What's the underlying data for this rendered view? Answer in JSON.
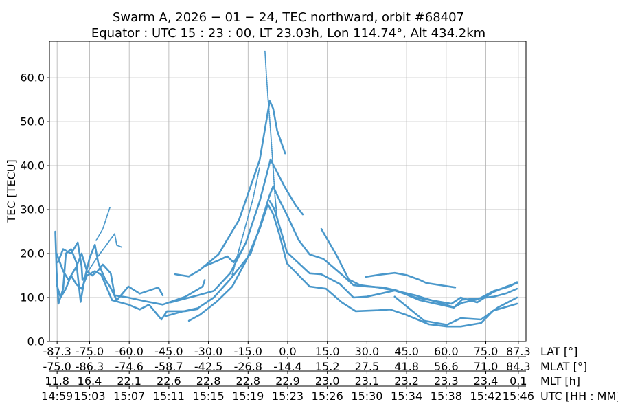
{
  "chart_data": {
    "type": "scatter",
    "title_lines": [
      "Swarm A,  2026 − 01 − 24,  TEC northward,  orbit #68407",
      "Equator :  UTC 15 : 23 : 00,  LT 23.03h,  Lon 114.74°,  Alt 434.2km"
    ],
    "ylabel": "TEC [TECU]",
    "xlim": [
      -90.2,
      90.2
    ],
    "ylim": [
      0,
      68.3
    ],
    "yticks": [
      0,
      10,
      20,
      30,
      40,
      50,
      60
    ],
    "ytick_labels": [
      "0.0",
      "10.0",
      "20.0",
      "30.0",
      "40.0",
      "50.0",
      "60.0"
    ],
    "grid": true,
    "color": "#4a98cb",
    "xticks": [
      -87.3,
      -75,
      -60,
      -45,
      -30,
      -15,
      0,
      15,
      30,
      45,
      60,
      75,
      87.3
    ],
    "axis_rows": [
      {
        "label": "LAT [°]",
        "values": [
          "-87.3",
          "-75.0",
          "-60.0",
          "-45.0",
          "-30.0",
          "-15.0",
          "0.0",
          "15.0",
          "30.0",
          "45.0",
          "60.0",
          "75.0",
          "87.3"
        ]
      },
      {
        "label": "MLAT [°]",
        "values": [
          "-75.0",
          "-86.3",
          "-74.6",
          "-58.7",
          "-42.5",
          "-26.8",
          "-14.4",
          "15.2",
          "27.5",
          "41.8",
          "56.6",
          "71.0",
          "84.3"
        ]
      },
      {
        "label": "MLT [h]",
        "values": [
          "11.8",
          "16.4",
          "22.1",
          "22.6",
          "22.8",
          "22.8",
          "22.9",
          "23.0",
          "23.1",
          "23.2",
          "23.3",
          "23.4",
          "0.1"
        ]
      },
      {
        "label": "UTC [HH : MM]",
        "values": [
          "14:59",
          "15:03",
          "15:07",
          "15:11",
          "15:15",
          "15:19",
          "15:23",
          "15:26",
          "15:30",
          "15:34",
          "15:38",
          "15:42",
          "15:46"
        ]
      }
    ],
    "series": [
      {
        "style": "dotted",
        "points": [
          [
            -8.6,
            66
          ],
          [
            -8,
            60
          ],
          [
            -7.4,
            55
          ],
          [
            -6.5,
            48
          ],
          [
            -5.6,
            40
          ],
          [
            -4.8,
            33
          ],
          [
            -4,
            28
          ]
        ]
      },
      {
        "style": "solid",
        "points": [
          [
            -42.6,
            15.3
          ],
          [
            -37.4,
            14.8
          ],
          [
            -33.2,
            16.3
          ],
          [
            -26.2,
            19.8
          ],
          [
            -18.4,
            27.7
          ],
          [
            -10.6,
            41.3
          ],
          [
            -6.8,
            54.7
          ],
          [
            -5.5,
            53
          ],
          [
            -4,
            48
          ],
          [
            -1,
            42.8
          ]
        ]
      },
      {
        "style": "dotted",
        "points": [
          [
            -21,
            15.2
          ],
          [
            -17.1,
            23.8
          ],
          [
            -13.2,
            32.3
          ],
          [
            -10.6,
            39.7
          ]
        ]
      },
      {
        "style": "solid",
        "points": [
          [
            -44.4,
            8.9
          ],
          [
            -34,
            10.5
          ],
          [
            -28,
            11.5
          ],
          [
            -21.8,
            15.5
          ],
          [
            -15.8,
            22.5
          ],
          [
            -10.6,
            31.9
          ],
          [
            -6.5,
            41.4
          ],
          [
            -4,
            38.5
          ],
          [
            -1,
            35
          ],
          [
            3,
            31
          ],
          [
            5.7,
            28.9
          ]
        ]
      },
      {
        "style": "solid",
        "points": [
          [
            -46,
            5.8
          ],
          [
            -40,
            6.8
          ],
          [
            -34,
            7.6
          ],
          [
            -28,
            10
          ],
          [
            -22,
            14
          ],
          [
            -18,
            17
          ],
          [
            -14,
            20
          ],
          [
            -10.6,
            26
          ],
          [
            -7,
            33
          ],
          [
            -5.5,
            35.3
          ],
          [
            -3,
            32
          ],
          [
            -0.3,
            28.8
          ],
          [
            4.2,
            23
          ],
          [
            8.3,
            19.8
          ],
          [
            13.5,
            18.8
          ],
          [
            20.5,
            15.2
          ],
          [
            24.9,
            12.8
          ],
          [
            30,
            12.5
          ],
          [
            36,
            12.3
          ],
          [
            41.3,
            11.6
          ],
          [
            50,
            9.4
          ],
          [
            62.9,
            7.7
          ],
          [
            66,
            9.5
          ],
          [
            72,
            9.8
          ],
          [
            78,
            10.2
          ],
          [
            83,
            11
          ],
          [
            86.8,
            12
          ]
        ]
      },
      {
        "style": "solid",
        "points": [
          [
            -37.4,
            4.7
          ],
          [
            -33.2,
            6.1
          ],
          [
            -27,
            9
          ],
          [
            -21,
            12.5
          ],
          [
            -15.8,
            18.3
          ],
          [
            -10.6,
            25.6
          ],
          [
            -7.5,
            31.2
          ],
          [
            -5.5,
            29
          ],
          [
            -3,
            24
          ],
          [
            -0.3,
            17.8
          ],
          [
            8.3,
            12.5
          ],
          [
            14.5,
            12
          ],
          [
            20.5,
            8.9
          ],
          [
            25.7,
            6.9
          ],
          [
            34.3,
            7.1
          ],
          [
            38.7,
            7.3
          ],
          [
            44.7,
            6.1
          ],
          [
            53.5,
            3.9
          ],
          [
            60.3,
            3.4
          ],
          [
            65.5,
            3.4
          ],
          [
            73.2,
            4.2
          ],
          [
            77.7,
            7.0
          ],
          [
            86.8,
            8.6
          ]
        ]
      },
      {
        "style": "solid",
        "points": [
          [
            -6.8,
            32
          ],
          [
            -5,
            30
          ],
          [
            -2,
            24
          ],
          [
            -0.3,
            20.3
          ],
          [
            8.3,
            15.5
          ],
          [
            12.7,
            15.3
          ],
          [
            19.7,
            13.1
          ],
          [
            24.9,
            10
          ],
          [
            30,
            10.2
          ],
          [
            40.5,
            11.6
          ],
          [
            48.3,
            10.5
          ],
          [
            62.9,
            7.8
          ],
          [
            66,
            8.8
          ],
          [
            72,
            9.6
          ],
          [
            78,
            11.5
          ],
          [
            84,
            12.5
          ],
          [
            86.8,
            13.5
          ]
        ]
      },
      {
        "style": "solid",
        "points": [
          [
            12.7,
            25.6
          ],
          [
            18.7,
            19.4
          ],
          [
            23.1,
            14.1
          ],
          [
            27.5,
            12.8
          ],
          [
            34.3,
            12.3
          ],
          [
            40.5,
            11.6
          ],
          [
            48.3,
            10
          ],
          [
            62,
            8.6
          ],
          [
            65.5,
            10
          ],
          [
            71.7,
            8.9
          ],
          [
            77.7,
            11.2
          ],
          [
            82.9,
            12.5
          ],
          [
            86.8,
            13.3
          ]
        ]
      },
      {
        "style": "solid",
        "points": [
          [
            40.5,
            10.2
          ],
          [
            51.7,
            4.7
          ],
          [
            60.3,
            3.8
          ],
          [
            65.5,
            5.3
          ],
          [
            73.2,
            5
          ],
          [
            79.5,
            7.7
          ],
          [
            86.8,
            10
          ]
        ]
      },
      {
        "style": "solid",
        "points": [
          [
            29.6,
            14.7
          ],
          [
            35,
            15.2
          ],
          [
            40.5,
            15.6
          ],
          [
            45,
            15.1
          ],
          [
            50,
            14
          ],
          [
            52.5,
            13.3
          ],
          [
            58,
            12.8
          ],
          [
            63.4,
            12.3
          ]
        ]
      },
      {
        "style": "solid",
        "points": [
          [
            -32,
            17
          ],
          [
            -26,
            18.5
          ],
          [
            -22.9,
            19.4
          ],
          [
            -20.5,
            18
          ],
          [
            -17,
            21
          ]
        ]
      },
      {
        "style": "dotted",
        "points": [
          [
            -72.5,
            23
          ],
          [
            -70,
            25.6
          ],
          [
            -67.3,
            30.5
          ]
        ]
      },
      {
        "style": "dotted",
        "points": [
          [
            -77.7,
            14
          ],
          [
            -72.5,
            18.8
          ],
          [
            -65.5,
            24.5
          ],
          [
            -64.7,
            21.9
          ],
          [
            -62.6,
            21.4
          ]
        ]
      },
      {
        "style": "solid",
        "points": [
          [
            -88,
            25
          ],
          [
            -87.5,
            16
          ],
          [
            -86.8,
            8.6
          ],
          [
            -85,
            12
          ],
          [
            -84,
            20
          ],
          [
            -82,
            21
          ],
          [
            -80,
            18
          ],
          [
            -78.4,
            9
          ],
          [
            -77,
            14
          ],
          [
            -75,
            19
          ],
          [
            -73,
            22
          ],
          [
            -71.7,
            17.8
          ],
          [
            -69,
            14
          ],
          [
            -67.3,
            12.5
          ],
          [
            -64.7,
            9.4
          ],
          [
            -60.3,
            12.5
          ],
          [
            -56,
            10.9
          ],
          [
            -49,
            12.3
          ],
          [
            -47.3,
            10.5
          ]
        ]
      },
      {
        "style": "solid",
        "points": [
          [
            -87.5,
            20
          ],
          [
            -85,
            16
          ],
          [
            -83,
            14
          ],
          [
            -80,
            17
          ],
          [
            -78,
            20
          ],
          [
            -76,
            16
          ],
          [
            -74,
            15
          ],
          [
            -72,
            16
          ],
          [
            -70,
            17.5
          ],
          [
            -67,
            15.5
          ],
          [
            -65.5,
            10.5
          ],
          [
            -60.3,
            10
          ],
          [
            -54.3,
            9.2
          ],
          [
            -47.3,
            8.4
          ],
          [
            -38.7,
            10.2
          ],
          [
            -32.2,
            12.5
          ],
          [
            -31.4,
            14
          ]
        ]
      },
      {
        "style": "solid",
        "points": [
          [
            -87.5,
            13
          ],
          [
            -86,
            10
          ],
          [
            -84,
            12
          ],
          [
            -82,
            15
          ],
          [
            -80,
            13
          ],
          [
            -78,
            12
          ],
          [
            -76,
            15
          ],
          [
            -73,
            16
          ],
          [
            -70.6,
            15.2
          ],
          [
            -66.5,
            9.4
          ],
          [
            -60.3,
            8.4
          ],
          [
            -56,
            7.3
          ],
          [
            -52.5,
            8.4
          ],
          [
            -47.8,
            5
          ],
          [
            -45.7,
            6.9
          ],
          [
            -38.7,
            6.9
          ],
          [
            -34,
            7.4
          ]
        ]
      },
      {
        "style": "solid",
        "points": [
          [
            -87,
            18
          ],
          [
            -85,
            21
          ],
          [
            -82,
            20
          ],
          [
            -79.5,
            22.5
          ],
          [
            -78,
            17
          ],
          [
            -77.7,
            14
          ]
        ]
      }
    ]
  }
}
